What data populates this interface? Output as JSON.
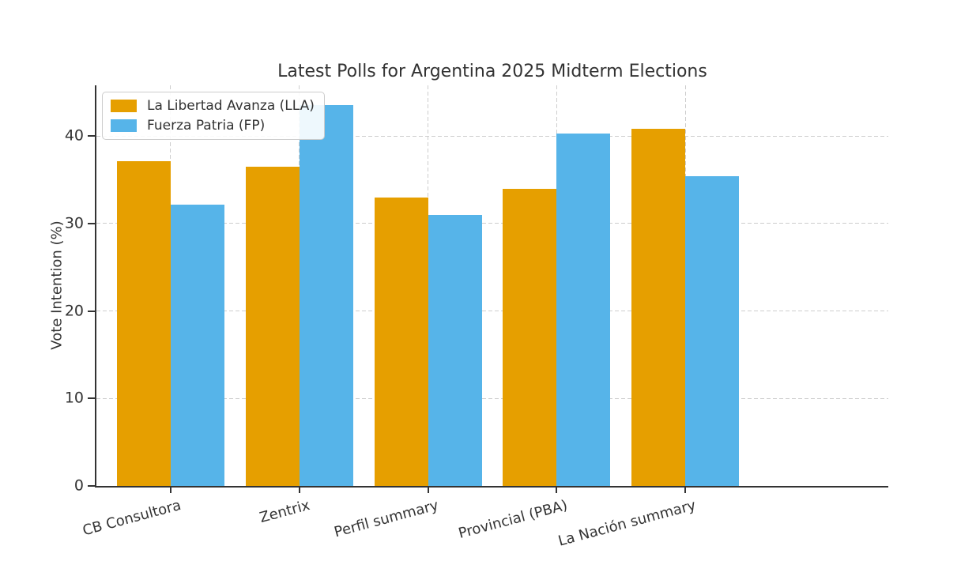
{
  "chart_data": {
    "type": "bar",
    "title": "Latest Polls for Argentina 2025 Midterm Elections",
    "xlabel": "",
    "ylabel": "Vote Intention (%)",
    "categories": [
      "CB Consultora",
      "Zentrix",
      "Perfil summary",
      "Provincial (PBA)",
      "La Nación summary"
    ],
    "series": [
      {
        "name": "La Libertad Avanza (LLA)",
        "color": "#E69F00",
        "values": [
          37.1,
          36.5,
          33.0,
          34.0,
          40.8
        ]
      },
      {
        "name": "Fuerza Patria (FP)",
        "color": "#56B4E9",
        "values": [
          32.2,
          43.5,
          31.0,
          40.3,
          35.4
        ]
      }
    ],
    "ylim": [
      0,
      45.8
    ],
    "yticks": [
      0,
      10,
      20,
      30,
      40
    ],
    "grid": "dashed horizontal and vertical",
    "legend_position": "upper left",
    "bar_colors_note": "orange and sky blue"
  }
}
